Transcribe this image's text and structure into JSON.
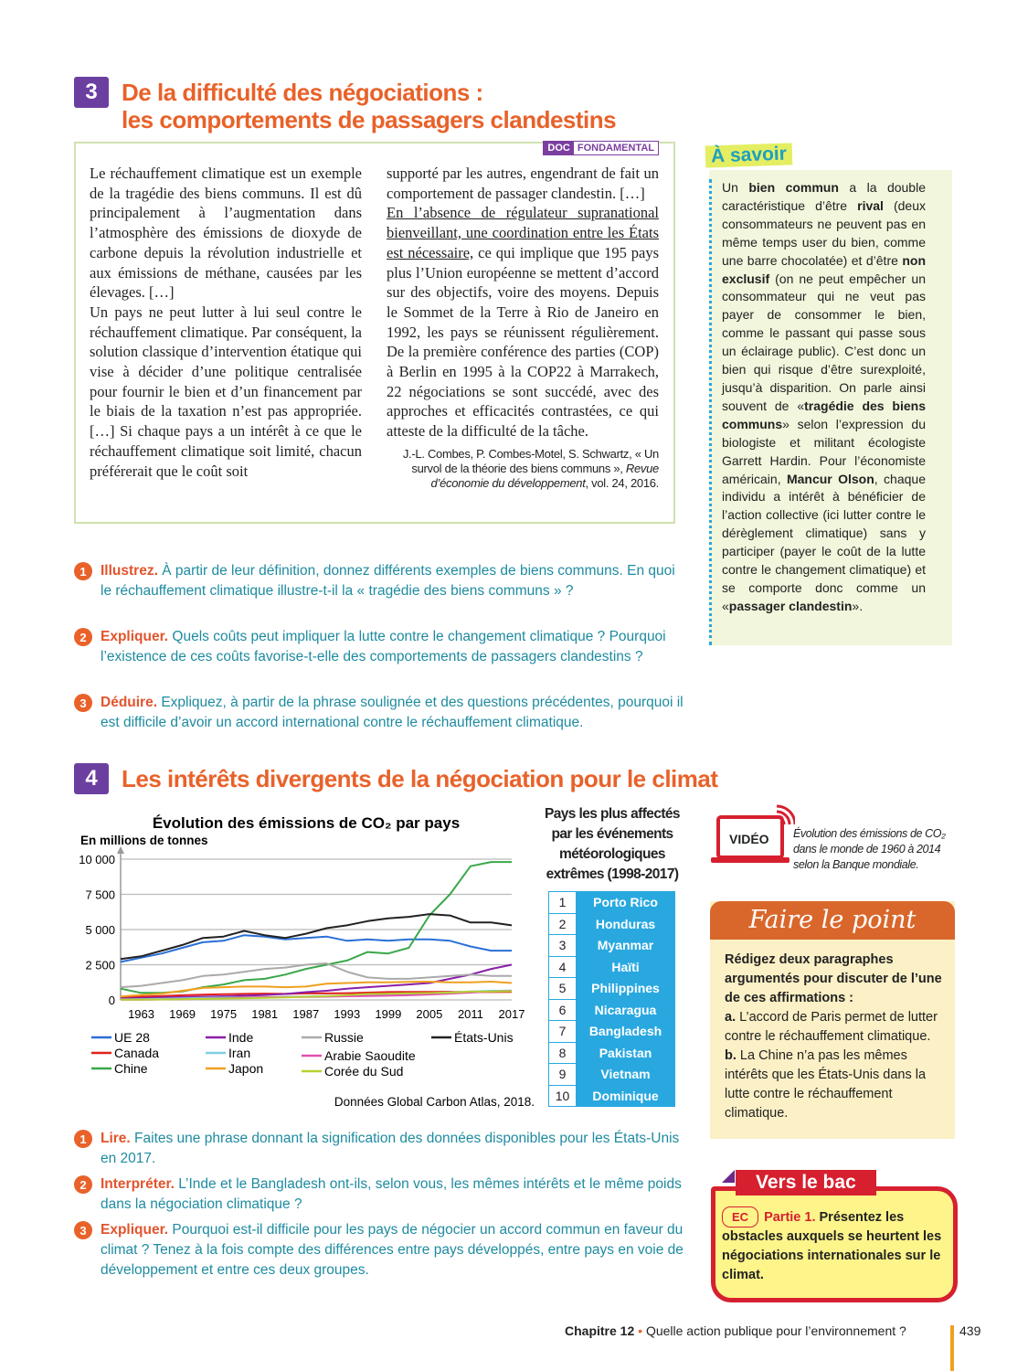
{
  "doc3": {
    "number": "3",
    "title_line1": "De la difficulté des négociations :",
    "title_line2": "les comportements de passagers clandestins",
    "tag_doc": "DOC",
    "tag_label": "FONDAMENTAL",
    "col1": "Le réchauffement climatique est un exemple de la tragédie des biens communs. Il est dû principalement à l’augmentation dans l’atmosphère des émissions de dioxyde de carbone depuis la révolution industrielle et aux émissions de méthane, causées par les élevages. […]",
    "col1b": "Un pays ne peut lutter à lui seul contre le réchauffement climatique. Par conséquent, la solution classique d’intervention étatique qui vise à décider d’une politique centralisée pour fournir le bien et d’un financement par le biais de la taxation n’est pas appropriée. […] Si chaque pays a un intérêt à ce que le réchauffement climatique soit limité, chacun préférerait que le coût soit",
    "col2a": "supporté par les autres, engendrant de fait un comportement de passager clandestin. […]",
    "col2_underlined": "En l’absence de régulateur supranational bienveillant, une coordination entre les États est nécessaire,",
    "col2b": " ce qui implique que 195 pays plus l’Union européenne se mettent d’accord sur des objectifs, voire des moyens. Depuis le Sommet de la Terre à Rio de Janeiro en 1992, les pays se réunissent régulièrement. De la première conférence des parties (COP) à Berlin en 1995 à la COP22 à Marrakech, 22 négociations se sont succédé, avec des approches et efficacités contrastées, ce qui atteste de la difficulté de la tâche.",
    "cite_a": "J.-L. Combes, P. Combes-Motel, S. Schwartz, « Un survol de la théorie des biens communs », ",
    "cite_journal": "Revue d’économie du développement",
    "cite_b": ", vol. 24, 2016.",
    "questions": [
      {
        "n": "1",
        "verb": "Illustrez.",
        "text": " À partir de leur définition, donnez différents exemples de biens communs. En quoi le réchauffement climatique illustre-t-il la « tragédie des biens communs » ?"
      },
      {
        "n": "2",
        "verb": "Expliquer.",
        "text": " Quels coûts peut impliquer la lutte contre le changement climatique ? Pourquoi l’existence de ces coûts favorise-t-elle des comportements de passagers clandestins ?"
      },
      {
        "n": "3",
        "verb": "Déduire.",
        "text": " Expliquez, à partir de la phrase soulignée et des questions précédentes, pourquoi il est difficile d’avoir un accord international contre le réchauffement climatique."
      }
    ]
  },
  "asavoir": {
    "title": "À savoir",
    "html": "Un <b>bien commun</b> a la double caractéristique d’être <b>rival</b> (deux consommateurs ne peuvent pas en même temps user du bien, comme une barre chocolatée) et d’être <b>non exclusif</b> (on ne peut empêcher un consommateur qui ne veut pas payer de consommer le bien, comme le passant qui passe sous un éclairage public). C’est donc un bien qui risque d’être surexploité, jusqu’à disparition. On parle ainsi souvent de «<b>tragédie des biens communs</b>» selon l’expression du biologiste et militant écologiste Garrett Hardin. Pour l’économiste américain, <b>Mancur Olson</b>, chaque individu a intérêt à bénéficier de l’action collective (ici lutter contre le dérèglement climatique) sans y participer (payer le coût de la lutte contre le changement climatique) et se comporte donc comme un «<b>passager clandestin</b>»."
  },
  "doc4": {
    "number": "4",
    "title": "Les intérêts divergents de la négociation pour le climat",
    "questions": [
      {
        "n": "1",
        "verb": "Lire.",
        "text": " Faites une phrase donnant la signification des données disponibles pour les États-Unis en 2017."
      },
      {
        "n": "2",
        "verb": "Interpréter.",
        "text": " L’Inde et le Bangladesh ont-ils, selon vous, les mêmes intérêts et le même poids dans la négociation climatique ?"
      },
      {
        "n": "3",
        "verb": "Expliquer.",
        "text": " Pourquoi est-il difficile pour les pays de négocier un accord commun en faveur du climat ? Tenez à la fois compte des différences entre pays développés, entre pays en voie de développement et entre ces deux groupes."
      }
    ]
  },
  "chart_data": {
    "type": "line",
    "title": "Évolution des émissions de CO₂ par pays",
    "ylabel": "En millions de tonnes",
    "source": "Données Global Carbon Atlas, 2018.",
    "ylim": [
      0,
      10000
    ],
    "xlim": [
      1960,
      2017
    ],
    "grid": true,
    "legend": "bottom",
    "yticks": [
      {
        "v": 0,
        "label": "0"
      },
      {
        "v": 2500,
        "label": "2 500"
      },
      {
        "v": 5000,
        "label": "5 000"
      },
      {
        "v": 7500,
        "label": "7 500"
      },
      {
        "v": 10000,
        "label": "10 000"
      }
    ],
    "xticks": [
      "1963",
      "1969",
      "1975",
      "1981",
      "1987",
      "1993",
      "1999",
      "2005",
      "2011",
      "2017"
    ],
    "x": [
      1960,
      1963,
      1966,
      1969,
      1972,
      1975,
      1978,
      1981,
      1984,
      1987,
      1990,
      1993,
      1996,
      1999,
      2002,
      2005,
      2008,
      2011,
      2014,
      2017
    ],
    "series": [
      {
        "name": "UE 28",
        "color": "#2a6fd6",
        "values": [
          2700,
          3000,
          3300,
          3700,
          4100,
          4200,
          4600,
          4500,
          4300,
          4400,
          4500,
          4200,
          4300,
          4200,
          4300,
          4300,
          4200,
          3800,
          3500,
          3500
        ]
      },
      {
        "name": "Canada",
        "color": "#e0201c",
        "values": [
          200,
          230,
          280,
          330,
          370,
          400,
          430,
          450,
          430,
          460,
          460,
          480,
          520,
          560,
          570,
          570,
          580,
          560,
          560,
          570
        ]
      },
      {
        "name": "Chine",
        "color": "#3aa84a",
        "values": [
          800,
          500,
          500,
          600,
          900,
          1100,
          1400,
          1500,
          1800,
          2200,
          2500,
          2800,
          3400,
          3300,
          3700,
          6000,
          7500,
          9500,
          9800,
          9800
        ]
      },
      {
        "name": "Inde",
        "color": "#8a1fa8",
        "values": [
          100,
          130,
          170,
          200,
          230,
          260,
          300,
          350,
          420,
          550,
          650,
          800,
          900,
          1000,
          1100,
          1200,
          1500,
          1800,
          2200,
          2500
        ]
      },
      {
        "name": "Iran",
        "color": "#7fd0e0",
        "values": [
          40,
          60,
          80,
          110,
          140,
          170,
          180,
          180,
          220,
          250,
          280,
          300,
          330,
          380,
          420,
          480,
          540,
          600,
          650,
          670
        ]
      },
      {
        "name": "Japon",
        "color": "#f0a020",
        "values": [
          250,
          350,
          450,
          650,
          850,
          900,
          950,
          950,
          900,
          950,
          1150,
          1200,
          1250,
          1250,
          1280,
          1300,
          1250,
          1250,
          1300,
          1200
        ]
      },
      {
        "name": "Russie",
        "color": "#aaaaaa",
        "values": [
          900,
          1000,
          1200,
          1400,
          1700,
          1800,
          2000,
          2200,
          2300,
          2500,
          2600,
          2000,
          1600,
          1500,
          1500,
          1600,
          1700,
          1800,
          1700,
          1700
        ]
      },
      {
        "name": "Arabie Saoudite",
        "color": "#e050b0",
        "values": [
          10,
          20,
          30,
          50,
          80,
          120,
          160,
          190,
          200,
          210,
          230,
          260,
          270,
          300,
          330,
          380,
          450,
          520,
          600,
          640
        ]
      },
      {
        "name": "Corée du Sud",
        "color": "#b8d030",
        "values": [
          10,
          20,
          30,
          50,
          70,
          90,
          120,
          140,
          180,
          230,
          260,
          340,
          420,
          440,
          470,
          490,
          520,
          590,
          600,
          620
        ]
      },
      {
        "name": "États-Unis",
        "color": "#222222",
        "values": [
          2900,
          3100,
          3500,
          3900,
          4400,
          4500,
          4900,
          4600,
          4400,
          4700,
          5100,
          5300,
          5600,
          5800,
          5900,
          6100,
          6000,
          5500,
          5500,
          5300
        ]
      }
    ]
  },
  "ranking": {
    "title": "Pays les plus affectés par les événements météorologiques extrêmes (1998-2017)",
    "rows": [
      {
        "rank": "1",
        "country": "Porto Rico"
      },
      {
        "rank": "2",
        "country": "Honduras"
      },
      {
        "rank": "3",
        "country": "Myanmar"
      },
      {
        "rank": "4",
        "country": "Haïti"
      },
      {
        "rank": "5",
        "country": "Philippines"
      },
      {
        "rank": "6",
        "country": "Nicaragua"
      },
      {
        "rank": "7",
        "country": "Bangladesh"
      },
      {
        "rank": "8",
        "country": "Pakistan"
      },
      {
        "rank": "9",
        "country": "Vietnam"
      },
      {
        "rank": "10",
        "country": "Dominique"
      }
    ]
  },
  "video": {
    "label": "VIDÉO",
    "text": "Évolution des émissions de CO₂ dans le monde de 1960 à 2014 selon la Banque mondiale."
  },
  "faire_le_point": {
    "title": "Faire le point",
    "intro": "Rédigez deux paragraphes argumentés pour discuter de l’une de ces affirmations :",
    "a_label": "a.",
    "a": " L’accord de Paris permet de lutter contre le réchauffement climatique.",
    "b_label": " b.",
    "b": " La Chine n’a pas les mêmes intérêts que les États-Unis dans la lutte contre le réchauffement climatique."
  },
  "vers_le_bac": {
    "title": "Vers le bac",
    "tag": "EC",
    "part": "Partie 1.",
    "text": " Présentez les obstacles auxquels se heurtent les négociations internationales sur le climat."
  },
  "footer": {
    "chapter": "Chapitre 12",
    "sep": " • ",
    "title": "Quelle action publique pour l’environnement ?",
    "page": "439"
  },
  "colors": {
    "accent_orange": "#e8622a",
    "badge_purple": "#6b3fa0",
    "question_teal": "#1e8ba0",
    "table_blue": "#29a8e0"
  }
}
